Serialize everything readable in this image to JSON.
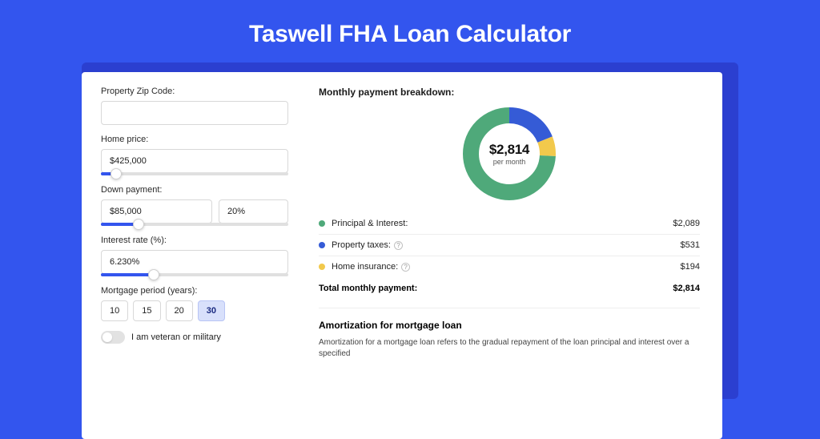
{
  "title": "Taswell FHA Loan Calculator",
  "colors": {
    "page_bg": "#3355ee",
    "backdrop": "#2b3fd0",
    "card_bg": "#ffffff",
    "text": "#1a1a1a"
  },
  "form": {
    "zip": {
      "label": "Property Zip Code:",
      "value": ""
    },
    "home_price": {
      "label": "Home price:",
      "value": "$425,000",
      "slider_pct": 8
    },
    "down_payment": {
      "label": "Down payment:",
      "amount": "$85,000",
      "pct": "20%",
      "slider_pct": 20
    },
    "interest_rate": {
      "label": "Interest rate (%):",
      "value": "6.230%",
      "slider_pct": 28
    },
    "mortgage_period": {
      "label": "Mortgage period (years):",
      "options": [
        "10",
        "15",
        "20",
        "30"
      ],
      "selected": "30"
    },
    "veteran": {
      "label": "I am veteran or military",
      "checked": false
    }
  },
  "breakdown": {
    "title": "Monthly payment breakdown:",
    "center_value": "$2,814",
    "center_sub": "per month",
    "donut": {
      "segments": [
        {
          "label": "Principal & Interest:",
          "value": "$2,089",
          "pct": 74.2,
          "color": "#4fa97a"
        },
        {
          "label": "Property taxes:",
          "value": "$531",
          "pct": 18.9,
          "color": "#355bd6",
          "info": true
        },
        {
          "label": "Home insurance:",
          "value": "$194",
          "pct": 6.9,
          "color": "#f2c94c",
          "info": true
        }
      ],
      "inner_radius": 38,
      "outer_radius": 58,
      "bg": "#ffffff"
    },
    "total": {
      "label": "Total monthly payment:",
      "value": "$2,814"
    }
  },
  "amortization": {
    "title": "Amortization for mortgage loan",
    "text": "Amortization for a mortgage loan refers to the gradual repayment of the loan principal and interest over a specified"
  }
}
